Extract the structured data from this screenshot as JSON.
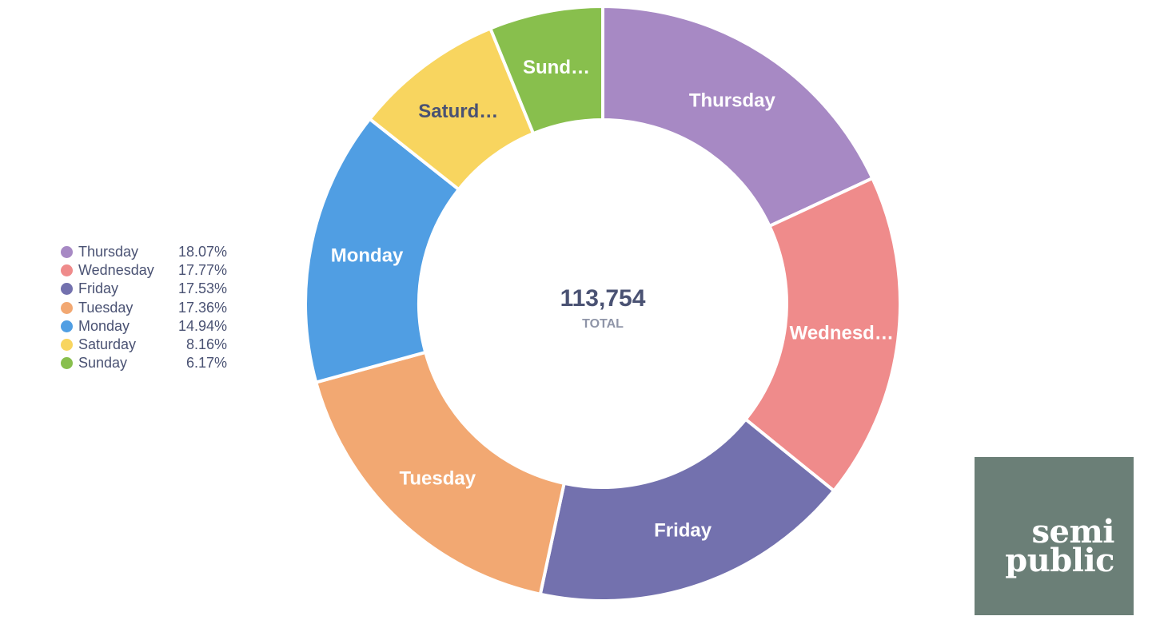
{
  "chart_data": {
    "type": "pie",
    "style": "donut",
    "start": "top",
    "direction": "clockwise",
    "categories": [
      "Thursday",
      "Wednesday",
      "Friday",
      "Tuesday",
      "Monday",
      "Saturday",
      "Sunday"
    ],
    "slice_labels": [
      "Thursday",
      "Wednesd…",
      "Friday",
      "Tuesday",
      "Monday",
      "Saturd…",
      "Sund…"
    ],
    "values": [
      18.07,
      17.77,
      17.53,
      17.36,
      14.94,
      8.16,
      6.17
    ],
    "value_labels": [
      "18.07%",
      "17.77%",
      "17.53%",
      "17.36%",
      "14.94%",
      "8.16%",
      "6.17%"
    ],
    "colors": [
      "#a789c4",
      "#ef8b8b",
      "#7371ae",
      "#f2a872",
      "#509ee3",
      "#f8d55f",
      "#88bf4d"
    ],
    "slice_label_colors": [
      "#ffffff",
      "#ffffff",
      "#ffffff",
      "#ffffff",
      "#ffffff",
      "#4a5273",
      "#ffffff"
    ],
    "total": "113,754",
    "total_label": "TOTAL",
    "legend_position": "left"
  },
  "logo": {
    "line1": "semi",
    "line2": "public",
    "background": "#6b7f77"
  }
}
